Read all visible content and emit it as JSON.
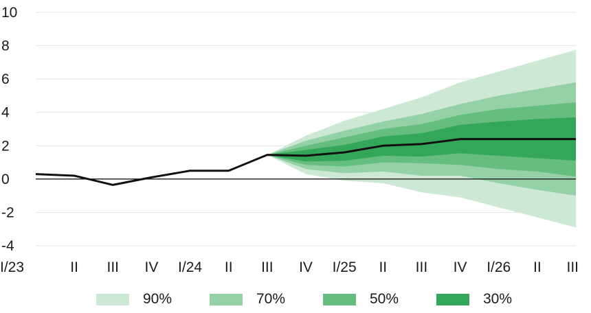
{
  "chart_data": {
    "type": "area",
    "categories": [
      "I/23",
      "II",
      "III",
      "IV",
      "I/24",
      "II",
      "III",
      "IV",
      "I/25",
      "II",
      "III",
      "IV",
      "I/26",
      "II",
      "III"
    ],
    "ylim": [
      -4,
      10
    ],
    "yticks": [
      -4,
      -2,
      0,
      2,
      4,
      6,
      8,
      10
    ],
    "grid": true,
    "zero_line": true,
    "legend_position": "bottom",
    "central": {
      "values": [
        0.3,
        0.2,
        -0.35,
        0.1,
        0.5,
        0.5,
        1.45,
        1.4,
        1.6,
        2.0,
        2.1,
        2.4,
        2.4,
        2.4,
        2.4
      ]
    },
    "fan_start_index": 6,
    "bands": [
      {
        "name": "90%",
        "color": "#cde9d5",
        "upper": [
          1.45,
          2.6,
          3.5,
          4.2,
          4.9,
          5.8,
          6.45,
          7.1,
          7.75
        ],
        "lower": [
          1.45,
          0.3,
          -0.1,
          -0.25,
          -0.8,
          -1.1,
          -1.7,
          -2.3,
          -2.9
        ]
      },
      {
        "name": "70%",
        "color": "#95d1a6",
        "upper": [
          1.45,
          2.3,
          2.9,
          3.45,
          3.9,
          4.5,
          5.0,
          5.4,
          5.8
        ],
        "lower": [
          1.45,
          0.6,
          0.35,
          0.45,
          0.2,
          0.2,
          -0.25,
          -0.65,
          -1.0
        ]
      },
      {
        "name": "50%",
        "color": "#66bd80",
        "upper": [
          1.45,
          2.0,
          2.5,
          3.0,
          3.3,
          3.85,
          4.2,
          4.4,
          4.6
        ]
      },
      {
        "name": "30%",
        "color": "#33a659",
        "upper": [
          1.45,
          1.75,
          2.05,
          2.55,
          2.75,
          3.25,
          3.45,
          3.6,
          3.7
        ]
      }
    ],
    "bands_lower_extra": [
      {
        "name": "50%",
        "lower": [
          1.45,
          0.85,
          0.75,
          1.0,
          0.95,
          0.85,
          0.6,
          0.45,
          0.15
        ]
      },
      {
        "name": "30%",
        "lower": [
          1.45,
          1.05,
          1.1,
          1.4,
          1.35,
          1.55,
          1.4,
          1.25,
          1.1
        ]
      }
    ]
  }
}
